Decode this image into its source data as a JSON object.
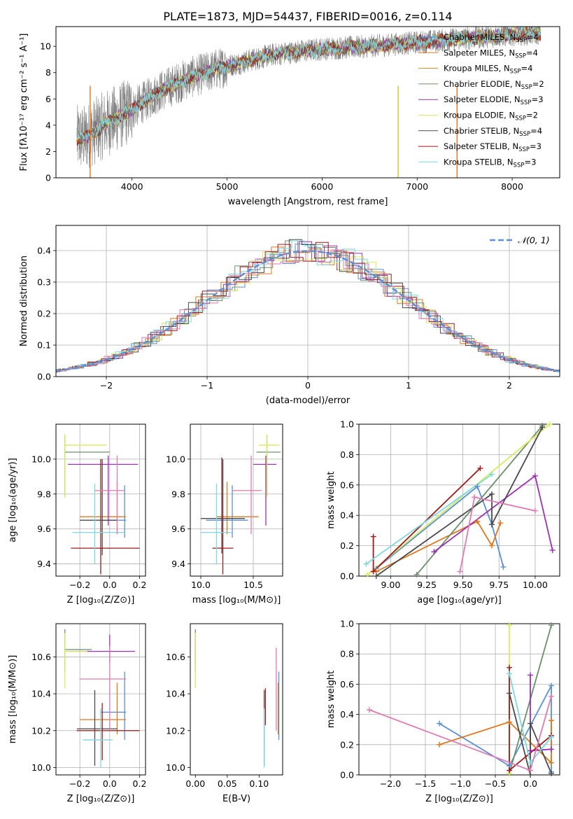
{
  "title": "PLATE=1873, MJD=54437, FIBERID=0016, z=0.114",
  "colors": {
    "data": "#7f7f7f",
    "models": [
      "#5b8fd6",
      "#e0781e",
      "#d4891f",
      "#6b8f6b",
      "#9b30b5",
      "#d9ec5c",
      "#4a4a4a",
      "#a01818",
      "#7fd8e0",
      "#e07ab2"
    ],
    "normal_curve": "#5b8fd6"
  },
  "chart_data": [
    {
      "id": "spectrum",
      "type": "line",
      "xlabel": "wavelength [Angstrom, rest frame]",
      "ylabel": "Flux [fλ10⁻¹⁷ erg cm⁻² s⁻¹ A⁻¹]",
      "xlim": [
        3200,
        8500
      ],
      "ylim": [
        0,
        11.5
      ],
      "xticks": [
        4000,
        5000,
        6000,
        7000,
        8000
      ],
      "yticks": [
        0,
        2,
        4,
        6,
        8,
        10
      ],
      "grid": false,
      "legend_position": "top-right",
      "data_color": "#7f7f7f",
      "series_names": [
        "Chabrier MILES, N_SSP=4",
        "Salpeter MILES, N_SSP=4",
        "Kroupa MILES, N_SSP=4",
        "Chabrier ELODIE, N_SSP=2",
        "Salpeter ELODIE, N_SSP=3",
        "Kroupa ELODIE, N_SSP=2",
        "Chabrier STELIB, N_SSP=4",
        "Salpeter STELIB, N_SSP=3",
        "Kroupa STELIB, N_SSP=3"
      ],
      "legend_labels": [
        {
          "pre": "Chabrier MILES, N",
          "sub": "SSP",
          "post": "=4"
        },
        {
          "pre": "Salpeter MILES, N",
          "sub": "SSP",
          "post": "=4"
        },
        {
          "pre": "Kroupa MILES, N",
          "sub": "SSP",
          "post": "=4"
        },
        {
          "pre": "Chabrier ELODIE, N",
          "sub": "SSP",
          "post": "=2"
        },
        {
          "pre": "Salpeter ELODIE, N",
          "sub": "SSP",
          "post": "=3"
        },
        {
          "pre": "Kroupa ELODIE, N",
          "sub": "SSP",
          "post": "=2"
        },
        {
          "pre": "Chabrier STELIB, N",
          "sub": "SSP",
          "post": "=4"
        },
        {
          "pre": "Salpeter STELIB, N",
          "sub": "SSP",
          "post": "=3"
        },
        {
          "pre": "Kroupa STELIB, N",
          "sub": "SSP",
          "post": "=3"
        }
      ],
      "continuum": [
        [
          3500,
          3.0
        ],
        [
          3700,
          4.0
        ],
        [
          4000,
          5.2
        ],
        [
          4300,
          6.6
        ],
        [
          4600,
          7.6
        ],
        [
          5000,
          8.5
        ],
        [
          5500,
          9.4
        ],
        [
          6000,
          9.8
        ],
        [
          6500,
          10.0
        ],
        [
          7000,
          10.3
        ],
        [
          7500,
          10.6
        ],
        [
          8000,
          10.9
        ],
        [
          8300,
          11.0
        ]
      ],
      "spikes": [
        [
          6800,
          0
        ],
        [
          7420,
          0
        ],
        [
          3560,
          0
        ],
        [
          3980,
          1.0
        ]
      ]
    },
    {
      "id": "residuals",
      "type": "line",
      "xlabel": "(data-model)/error",
      "ylabel": "Normed distribution",
      "xlim": [
        -2.5,
        2.5
      ],
      "ylim": [
        0,
        0.48
      ],
      "xticks": [
        -2,
        -1,
        0,
        1,
        2
      ],
      "yticks": [
        0.0,
        0.1,
        0.2,
        0.3,
        0.4
      ],
      "grid": true,
      "legend_position": "top-right",
      "legend_label": "𝒩(0, 1)",
      "normal": {
        "mean": 0,
        "sigma": 1
      }
    },
    {
      "id": "age-vs-Z",
      "type": "scatter",
      "xlabel": "Z [log₁₀(Z/Z⊙)]",
      "ylabel": "age  [log₁₀(age/yr)]",
      "xlim": [
        -0.36,
        0.24
      ],
      "ylim": [
        9.33,
        10.2
      ],
      "xticks": [
        -0.2,
        0.0,
        0.2
      ],
      "yticks": [
        9.4,
        9.6,
        9.8,
        10.0
      ],
      "grid": true,
      "points": [
        {
          "x": 0.1,
          "y": 9.65,
          "xerr": [
            0.16,
            0.01
          ],
          "yerr": [
            0.1,
            0.2
          ],
          "c": 0
        },
        {
          "x": 0.05,
          "y": 9.67,
          "xerr": [
            0.25,
            0.06
          ],
          "yerr": [
            0.1,
            0.2
          ],
          "c": 1
        },
        {
          "x": -0.3,
          "y": 10.04,
          "xerr": [
            0.0,
            0.3
          ],
          "yerr": [
            0.25,
            0.1
          ],
          "c": 3
        },
        {
          "x": -0.01,
          "y": 9.97,
          "xerr": [
            0.27,
            0.2
          ],
          "yerr": [
            0.35,
            0.05
          ],
          "c": 4
        },
        {
          "x": -0.3,
          "y": 10.08,
          "xerr": [
            0.0,
            0.28
          ],
          "yerr": [
            0.3,
            0.06
          ],
          "c": 5
        },
        {
          "x": -0.05,
          "y": 9.65,
          "xerr": [
            0.15,
            0.1
          ],
          "yerr": [
            0.2,
            0.35
          ],
          "c": 6
        },
        {
          "x": -0.06,
          "y": 9.49,
          "xerr": [
            0.2,
            0.26
          ],
          "yerr": [
            0.15,
            0.51
          ],
          "c": 7
        },
        {
          "x": -0.1,
          "y": 9.58,
          "xerr": [
            0.15,
            0.2
          ],
          "yerr": [
            0.18,
            0.28
          ],
          "c": 8
        },
        {
          "x": 0.05,
          "y": 9.82,
          "xerr": [
            0.15,
            0.05
          ],
          "yerr": [
            0.25,
            0.2
          ],
          "c": 9
        }
      ]
    },
    {
      "id": "age-vs-mass",
      "type": "scatter",
      "xlabel": "mass [log₁₀(M/M⊙)]",
      "ylabel": "",
      "xlim": [
        9.9,
        10.78
      ],
      "ylim": [
        9.33,
        10.2
      ],
      "xticks": [
        10.0,
        10.5
      ],
      "yticks": [
        9.4,
        9.6,
        9.8,
        10.0
      ],
      "grid": true,
      "points": [
        {
          "x": 10.3,
          "y": 9.65,
          "xerr": [
            0.25,
            0.15
          ],
          "yerr": [
            0.1,
            0.2
          ],
          "c": 0
        },
        {
          "x": 10.25,
          "y": 9.67,
          "xerr": [
            0.1,
            0.3
          ],
          "yerr": [
            0.1,
            0.2
          ],
          "c": 1
        },
        {
          "x": 10.63,
          "y": 10.04,
          "xerr": [
            0.1,
            0.13
          ],
          "yerr": [
            0.25,
            0.1
          ],
          "c": 3
        },
        {
          "x": 10.62,
          "y": 9.97,
          "xerr": [
            0.12,
            0.1
          ],
          "yerr": [
            0.35,
            0.05
          ],
          "c": 4
        },
        {
          "x": 10.63,
          "y": 10.08,
          "xerr": [
            0.08,
            0.12
          ],
          "yerr": [
            0.3,
            0.06
          ],
          "c": 5
        },
        {
          "x": 10.2,
          "y": 9.66,
          "xerr": [
            0.2,
            0.22
          ],
          "yerr": [
            0.2,
            0.35
          ],
          "c": 6
        },
        {
          "x": 10.21,
          "y": 9.49,
          "xerr": [
            0.1,
            0.1
          ],
          "yerr": [
            0.15,
            0.51
          ],
          "c": 7
        },
        {
          "x": 10.15,
          "y": 9.58,
          "xerr": [
            0.15,
            0.15
          ],
          "yerr": [
            0.18,
            0.28
          ],
          "c": 8
        },
        {
          "x": 10.48,
          "y": 9.82,
          "xerr": [
            0.18,
            0.1
          ],
          "yerr": [
            0.25,
            0.2
          ],
          "c": 9
        }
      ]
    },
    {
      "id": "mass-weight-vs-age",
      "type": "line",
      "xlabel": "age  [log₁₀(age/yr)]",
      "ylabel": "mass weight",
      "xlim": [
        8.78,
        10.17
      ],
      "ylim": [
        0,
        1
      ],
      "xticks": [
        9.0,
        9.25,
        9.5,
        9.75,
        10.0
      ],
      "yticks": [
        0.0,
        0.2,
        0.4,
        0.6,
        0.8,
        1.0
      ],
      "grid": true,
      "series": [
        {
          "c": 0,
          "points": [
            [
              8.9,
              0.05
            ],
            [
              9.6,
              0.59
            ],
            [
              9.7,
              0.34
            ],
            [
              9.78,
              0.06
            ]
          ]
        },
        {
          "c": 1,
          "points": [
            [
              8.9,
              0.03
            ],
            [
              9.6,
              0.36
            ],
            [
              9.7,
              0.2
            ],
            [
              9.76,
              0.35
            ]
          ]
        },
        {
          "c": 3,
          "points": [
            [
              9.18,
              0.01
            ],
            [
              10.05,
              0.99
            ]
          ]
        },
        {
          "c": 4,
          "points": [
            [
              9.3,
              0.16
            ],
            [
              10.0,
              0.66
            ],
            [
              10.12,
              0.17
            ]
          ]
        },
        {
          "c": 5,
          "points": [
            [
              8.84,
              0.01
            ],
            [
              10.1,
              1.0
            ]
          ]
        },
        {
          "c": 6,
          "points": [
            [
              8.9,
              0.0
            ],
            [
              9.7,
              0.54
            ],
            [
              9.7,
              0.34
            ],
            [
              10.05,
              0.98
            ]
          ]
        },
        {
          "c": 7,
          "points": [
            [
              8.88,
              0.26
            ],
            [
              8.88,
              0.03
            ],
            [
              9.62,
              0.71
            ]
          ]
        },
        {
          "c": 8,
          "points": [
            [
              8.83,
              0.08
            ],
            [
              9.7,
              0.67
            ]
          ]
        },
        {
          "c": 9,
          "points": [
            [
              9.48,
              0.03
            ],
            [
              9.58,
              0.52
            ],
            [
              10.0,
              0.43
            ]
          ]
        }
      ]
    },
    {
      "id": "mass-vs-Z",
      "type": "scatter",
      "xlabel": "Z [log₁₀(Z/Z⊙)]",
      "ylabel": "mass [log₁₀(M/M⊙)]",
      "xlim": [
        -0.36,
        0.24
      ],
      "ylim": [
        9.96,
        10.78
      ],
      "xticks": [
        -0.2,
        0.0,
        0.2
      ],
      "yticks": [
        10.0,
        10.2,
        10.4,
        10.6
      ],
      "grid": true,
      "points": [
        {
          "x": 0.1,
          "y": 10.3,
          "xerr": [
            0.16,
            0.01
          ],
          "yerr": [
            0.15,
            0.22
          ],
          "c": 0
        },
        {
          "x": 0.05,
          "y": 10.26,
          "xerr": [
            0.25,
            0.06
          ],
          "yerr": [
            0.08,
            0.2
          ],
          "c": 1
        },
        {
          "x": -0.3,
          "y": 10.64,
          "xerr": [
            0.0,
            0.18
          ],
          "yerr": [
            0.12,
            0.11
          ],
          "c": 3
        },
        {
          "x": 0.0,
          "y": 10.63,
          "xerr": [
            0.28,
            0.17
          ],
          "yerr": [
            0.06,
            0.09
          ],
          "c": 4
        },
        {
          "x": -0.3,
          "y": 10.63,
          "xerr": [
            0.0,
            0.15
          ],
          "yerr": [
            0.2,
            0.1
          ],
          "c": 5
        },
        {
          "x": -0.1,
          "y": 10.21,
          "xerr": [
            0.12,
            0.15
          ],
          "yerr": [
            0.2,
            0.21
          ],
          "c": 6
        },
        {
          "x": -0.05,
          "y": 10.2,
          "xerr": [
            0.17,
            0.25
          ],
          "yerr": [
            0.16,
            0.15
          ],
          "c": 7
        },
        {
          "x": -0.06,
          "y": 10.15,
          "xerr": [
            0.12,
            0.08
          ],
          "yerr": [
            0.15,
            0.17
          ],
          "c": 8
        },
        {
          "x": 0.0,
          "y": 10.48,
          "xerr": [
            0.2,
            0.11
          ],
          "yerr": [
            0.28,
            0.18
          ],
          "c": 9
        }
      ]
    },
    {
      "id": "mass-vs-ebv",
      "type": "scatter",
      "xlabel": "E(B-V)",
      "ylabel": "",
      "xlim": [
        -0.008,
        0.137
      ],
      "ylim": [
        9.96,
        10.78
      ],
      "xticks": [
        0.0,
        0.05,
        0.1
      ],
      "yticks": [
        10.0,
        10.2,
        10.4,
        10.6
      ],
      "grid": false,
      "points": [
        {
          "x": 0.131,
          "y": 10.3,
          "xerr": [
            0,
            0
          ],
          "yerr": [
            0.15,
            0.22
          ],
          "c": 0
        },
        {
          "x": 0.13,
          "y": 10.26,
          "xerr": [
            0,
            0
          ],
          "yerr": [
            0.08,
            0.2
          ],
          "c": 1
        },
        {
          "x": 0.0,
          "y": 10.64,
          "xerr": [
            0,
            0
          ],
          "yerr": [
            0.12,
            0.11
          ],
          "c": 3
        },
        {
          "x": 0.0,
          "y": 10.63,
          "xerr": [
            0,
            0
          ],
          "yerr": [
            0.06,
            0.09
          ],
          "c": 4
        },
        {
          "x": 0.0,
          "y": 10.63,
          "xerr": [
            0,
            0
          ],
          "yerr": [
            0.2,
            0.1
          ],
          "c": 5
        },
        {
          "x": 0.108,
          "y": 10.21,
          "xerr": [
            0,
            0
          ],
          "yerr": [
            0.2,
            0.21
          ],
          "c": 6
        },
        {
          "x": 0.11,
          "y": 10.35,
          "xerr": [
            0,
            0
          ],
          "yerr": [
            0.12,
            0.08
          ],
          "c": 7
        },
        {
          "x": 0.108,
          "y": 10.15,
          "xerr": [
            0,
            0
          ],
          "yerr": [
            0.15,
            0.17
          ],
          "c": 8
        },
        {
          "x": 0.127,
          "y": 10.48,
          "xerr": [
            0,
            0
          ],
          "yerr": [
            0.28,
            0.17
          ],
          "c": 9
        }
      ]
    },
    {
      "id": "mass-weight-vs-Z",
      "type": "line",
      "xlabel": "Z [log₁₀(Z/Z⊙)]",
      "ylabel": "mass weight",
      "xlim": [
        -2.45,
        0.42
      ],
      "ylim": [
        0,
        1
      ],
      "xticks": [
        -2.0,
        -1.5,
        -1.0,
        -0.5,
        0.0
      ],
      "yticks": [
        0.0,
        0.2,
        0.4,
        0.6,
        0.8,
        1.0
      ],
      "grid": true,
      "series": [
        {
          "c": 0,
          "points": [
            [
              -1.3,
              0.34
            ],
            [
              -0.3,
              0.06
            ],
            [
              0.3,
              0.59
            ],
            [
              0.3,
              0.02
            ]
          ]
        },
        {
          "c": 1,
          "points": [
            [
              -1.3,
              0.2
            ],
            [
              -0.3,
              0.35
            ],
            [
              0.3,
              0.08
            ],
            [
              0.3,
              0.36
            ]
          ]
        },
        {
          "c": 3,
          "points": [
            [
              -0.3,
              0.01
            ],
            [
              0.3,
              0.99
            ]
          ]
        },
        {
          "c": 4,
          "points": [
            [
              0.0,
              0.66
            ],
            [
              0.0,
              0.16
            ],
            [
              0.3,
              0.17
            ]
          ]
        },
        {
          "c": 5,
          "points": [
            [
              -0.3,
              0.99
            ],
            [
              -0.3,
              0.01
            ]
          ]
        },
        {
          "c": 6,
          "points": [
            [
              -0.3,
              0.54
            ],
            [
              0.0,
              0.0
            ],
            [
              0.0,
              0.34
            ],
            [
              0.3,
              0.01
            ]
          ]
        },
        {
          "c": 7,
          "points": [
            [
              -0.3,
              0.71
            ],
            [
              -0.3,
              0.03
            ],
            [
              0.3,
              0.26
            ]
          ]
        },
        {
          "c": 8,
          "points": [
            [
              -0.3,
              0.67
            ],
            [
              0.0,
              0.08
            ],
            [
              0.3,
              0.25
            ]
          ]
        },
        {
          "c": 9,
          "points": [
            [
              -2.3,
              0.43
            ],
            [
              0.0,
              0.03
            ],
            [
              0.3,
              0.52
            ]
          ]
        }
      ]
    }
  ]
}
